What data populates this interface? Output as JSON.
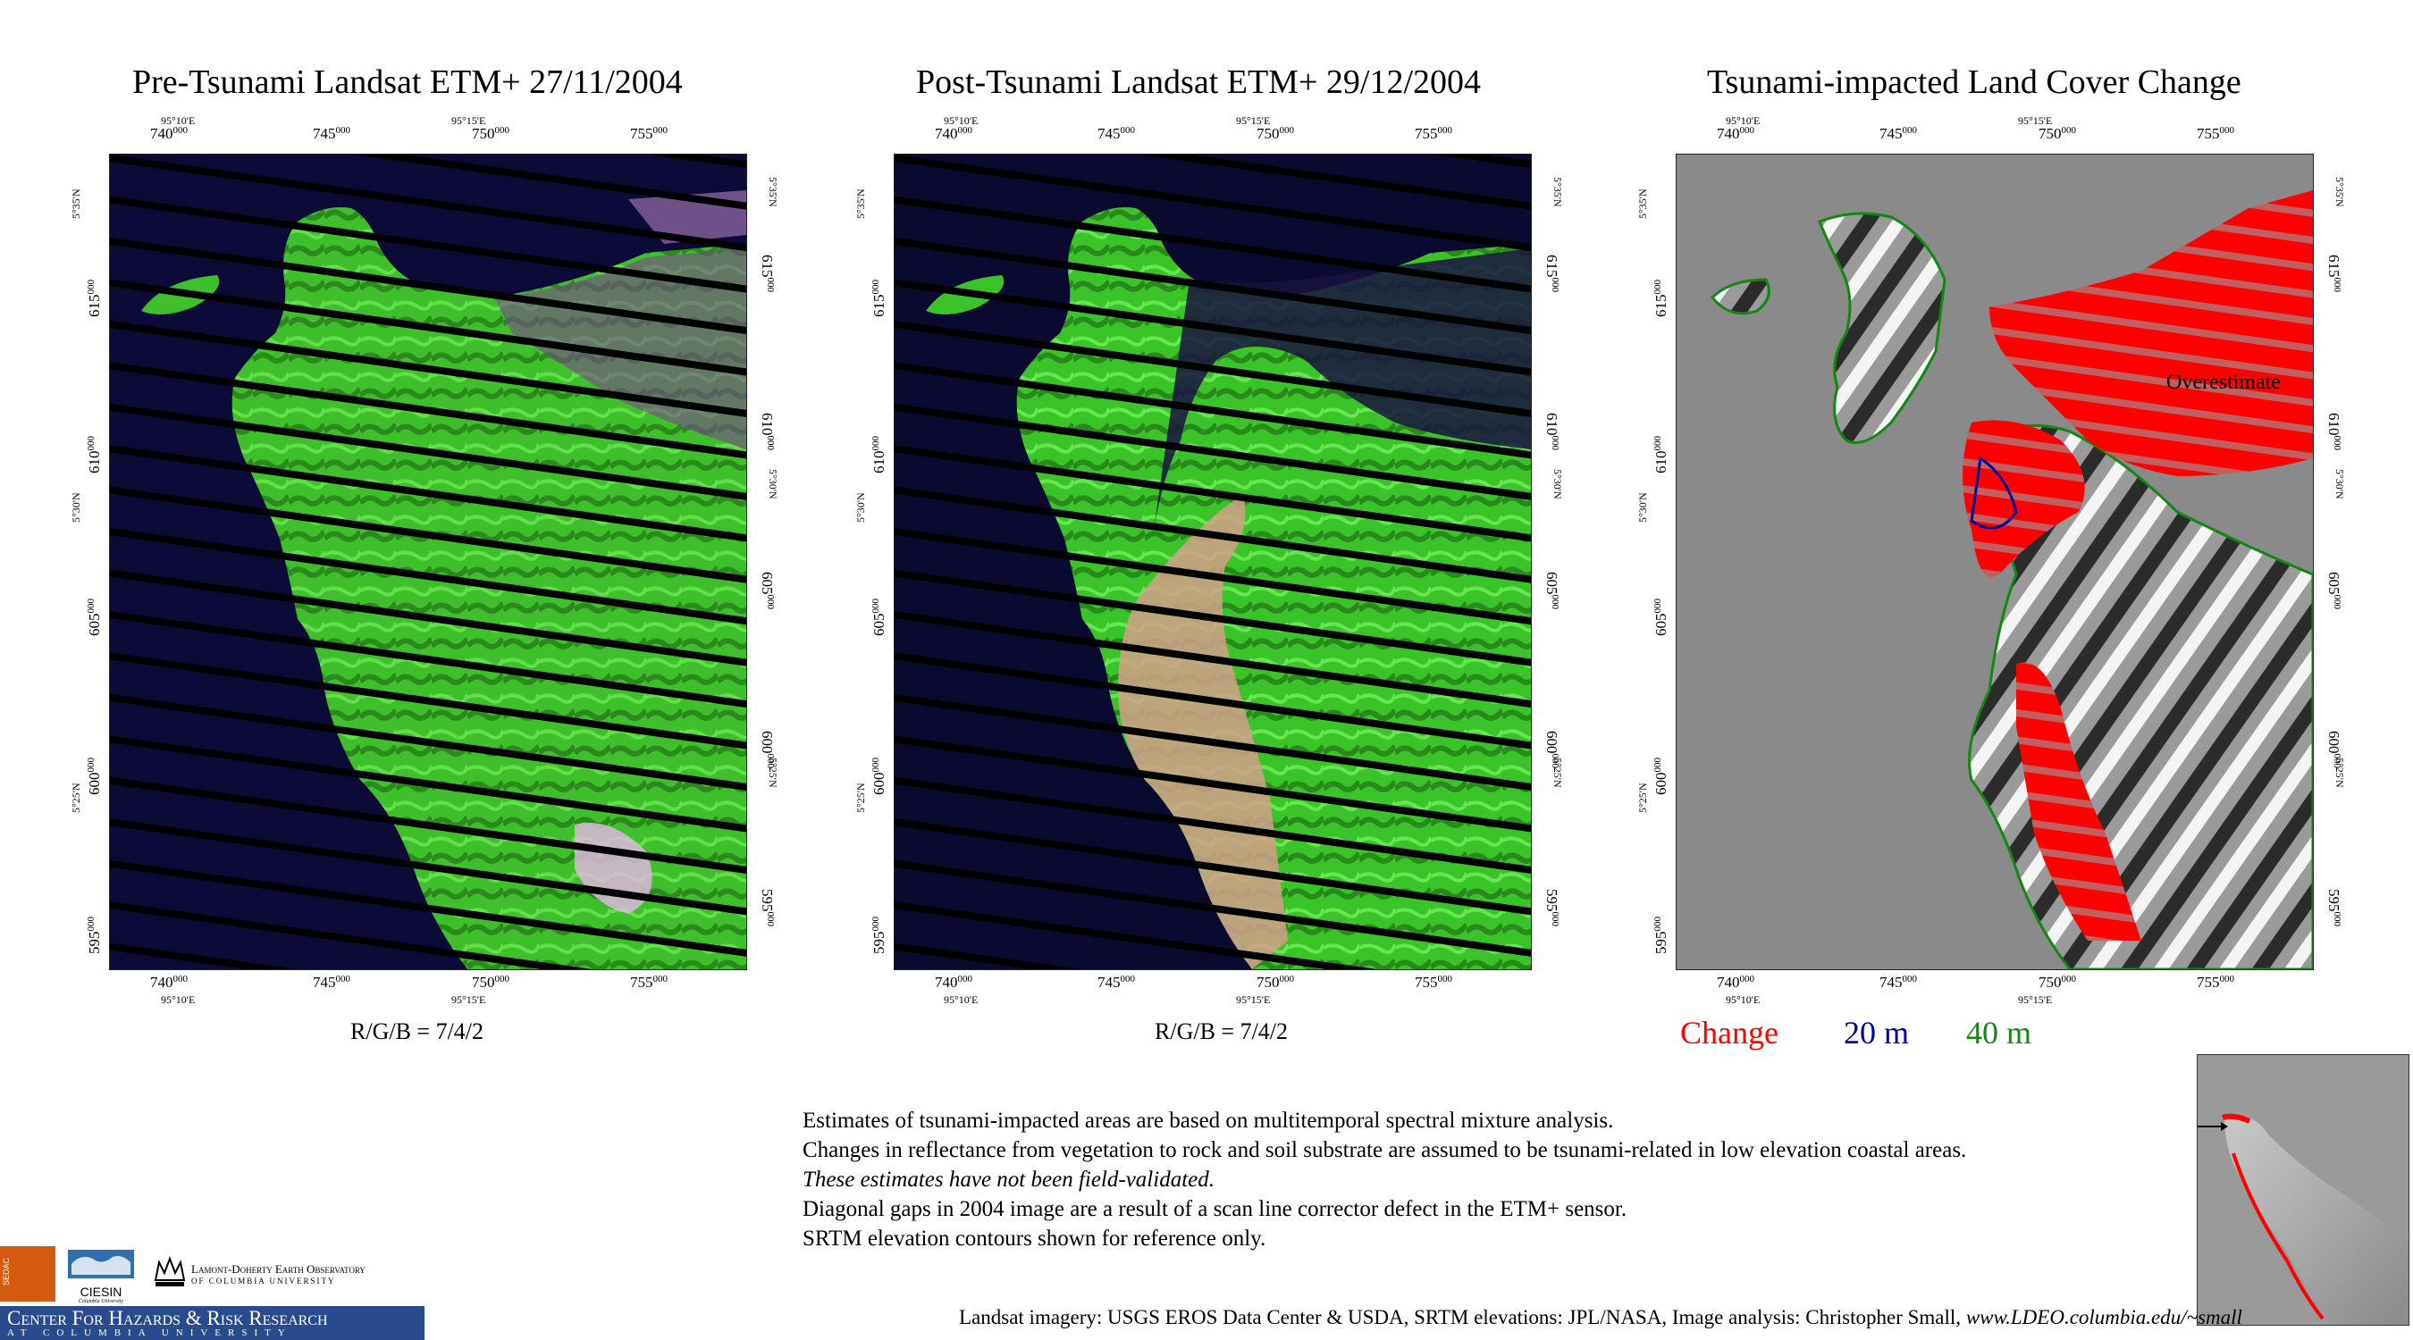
{
  "panels": [
    {
      "title": "Pre-Tsunami  Landsat ETM+    27/11/2004",
      "caption": "R/G/B = 7/4/2"
    },
    {
      "title": "Post-Tsunami  Landsat ETM+  29/12/2004",
      "caption": "R/G/B = 7/4/2"
    },
    {
      "title": "Tsunami-impacted Land Cover Change",
      "annotation": "Overestimate"
    }
  ],
  "axes": {
    "easting_ticks": [
      {
        "big": "740",
        "small": "000"
      },
      {
        "big": "745",
        "small": "000"
      },
      {
        "big": "750",
        "small": "000"
      },
      {
        "big": "755",
        "small": "000"
      }
    ],
    "northing_ticks": [
      {
        "big": "615",
        "small": "000"
      },
      {
        "big": "610",
        "small": "000"
      },
      {
        "big": "605",
        "small": "000"
      },
      {
        "big": "600",
        "small": "000"
      },
      {
        "big": "595",
        "small": "000"
      }
    ],
    "lon_labels": [
      "95°10'E",
      "95°15'E"
    ],
    "lat_labels": [
      "5°35'N",
      "5°30'N",
      "5°25'N"
    ]
  },
  "legend": {
    "change": {
      "label": "Change",
      "color": "#ff0000"
    },
    "contour20": {
      "label": "20 m",
      "color": "#000099"
    },
    "contour40": {
      "label": "40 m",
      "color": "#118811"
    }
  },
  "notes": [
    {
      "text": "Estimates of tsunami-impacted areas are based on multitemporal spectral mixture analysis.",
      "italic": false
    },
    {
      "text": "Changes in reflectance from vegetation to rock and soil substrate are assumed to be tsunami-related in low elevation coastal areas.",
      "italic": false
    },
    {
      "text": "These estimates have not been field-validated.",
      "italic": true
    },
    {
      "text": "Diagonal gaps in 2004 image are a result of a scan line corrector defect in the ETM+ sensor.",
      "italic": false
    },
    {
      "text": "SRTM elevation contours shown for reference only.",
      "italic": false
    }
  ],
  "credits": {
    "text": "Landsat imagery: USGS EROS Data Center & USDA,  SRTM elevations: JPL/NASA,   Image analysis:  Christopher Small,",
    "url": "www.LDEO.columbia.edu/~small"
  },
  "logos": {
    "sedac": "SEDAC",
    "ciesin": "CIESIN",
    "ciesin_sub": "Columbia University",
    "lamont_line1": "Lamont-Doherty Earth Observatory",
    "lamont_line2": "of Columbia University",
    "chrr_line1": "Center For Hazards & Risk Research",
    "chrr_line2": "At Columbia University"
  }
}
